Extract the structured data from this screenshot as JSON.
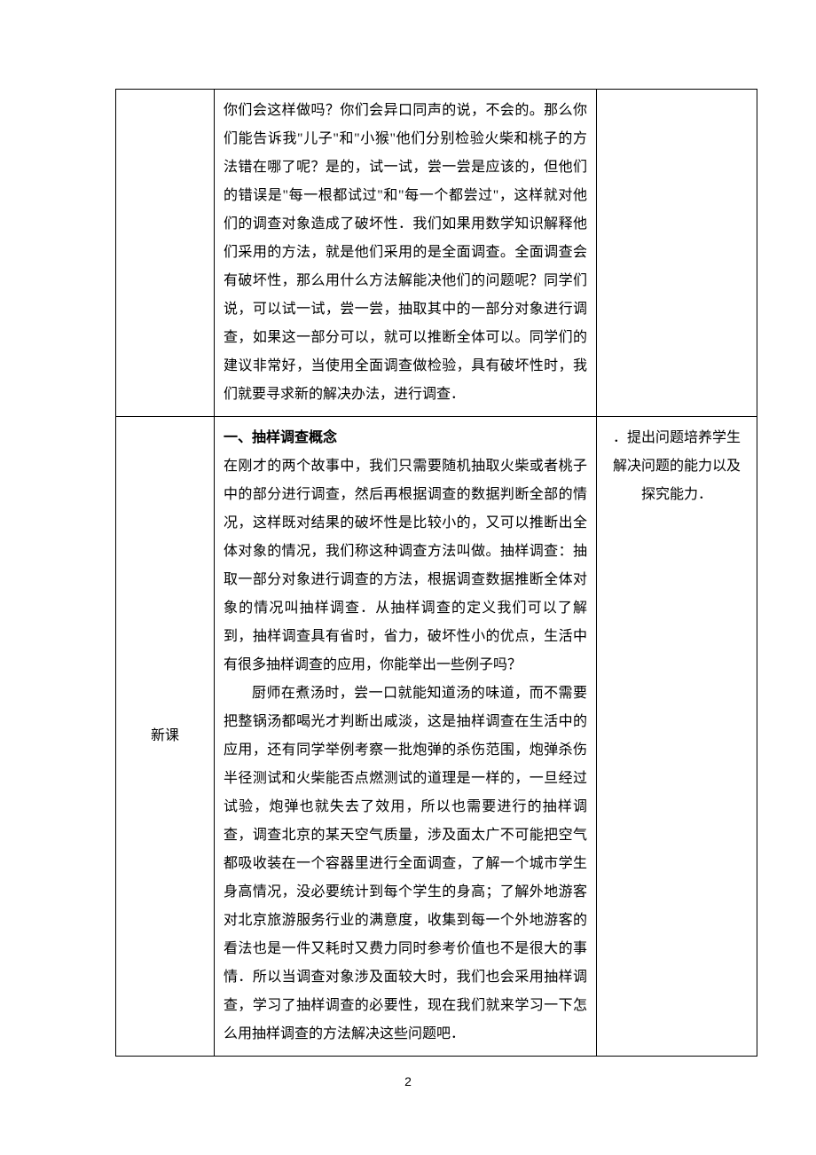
{
  "row1": {
    "col1": "",
    "col2": "你们会这样做吗？你们会异口同声的说，不会的。那么你们能告诉我\"儿子\"和\"小猴\"他们分别检验火柴和桃子的方法错在哪了呢？是的，试一试，尝一尝是应该的，但他们的错误是\"每一根都试过\"和\"每一个都尝过\"，这样就对他们的调查对象造成了破坏性．我们如果用数学知识解释他们采用的方法，就是他们采用的是全面调查。全面调查会有破坏性，那么用什么方法解能决他们的问题呢？同学们说，可以试一试，尝一尝，抽取其中的一部分对象进行调查，如果这一部分可以，就可以推断全体可以。同学们的建议非常好，当使用全面调查做检验，具有破坏性时，我们就要寻求新的解决办法，进行调查．",
    "col3": ""
  },
  "row2": {
    "col1": "新课",
    "heading": "一、抽样调查概念",
    "para1": "在刚才的两个故事中，我们只需要随机抽取火柴或者桃子中的部分进行调查，然后再根据调查的数据判断全部的情况，这样既对结果的破坏性是比较小的，又可以推断出全体对象的情况，我们称这种调查方法叫做。抽样调查：抽取一部分对象进行调查的方法，根据调查数据推断全体对象的情况叫抽样调查．从抽样调查的定义我们可以了解到，抽样调查具有省时，省力，破坏性小的优点，生活中有很多抽样调查的应用，你能举出一些例子吗？",
    "para2": "厨师在煮汤时，尝一口就能知道汤的味道，而不需要把整锅汤都喝光才判断出咸淡，这是抽样调查在生活中的应用，还有同学举例考察一批炮弹的杀伤范围，炮弹杀伤半径测试和火柴能否点燃测试的道理是一样的，一旦经过试验，炮弹也就失去了效用，所以也需要进行的抽样调查，调查北京的某天空气质量，涉及面太广不可能把空气都吸收装在一个容器里进行全面调查，了解一个城市学生身高情况，没必要统计到每个学生的身高；了解外地游客对北京旅游服务行业的满意度，收集到每一个外地游客的看法也是一件又耗时又费力同时参考价值也不是很大的事情．所以当调查对象涉及面较大时，我们也会采用抽样调查，学习了抽样调查的必要性，现在我们就来学习一下怎么用抽样调查的方法解决这些问题吧．",
    "col3_line1": "．提出问题培养学生",
    "col3_line2": "解决问题的能力以及",
    "col3_line3": "探究能力．"
  },
  "page_number": "2"
}
